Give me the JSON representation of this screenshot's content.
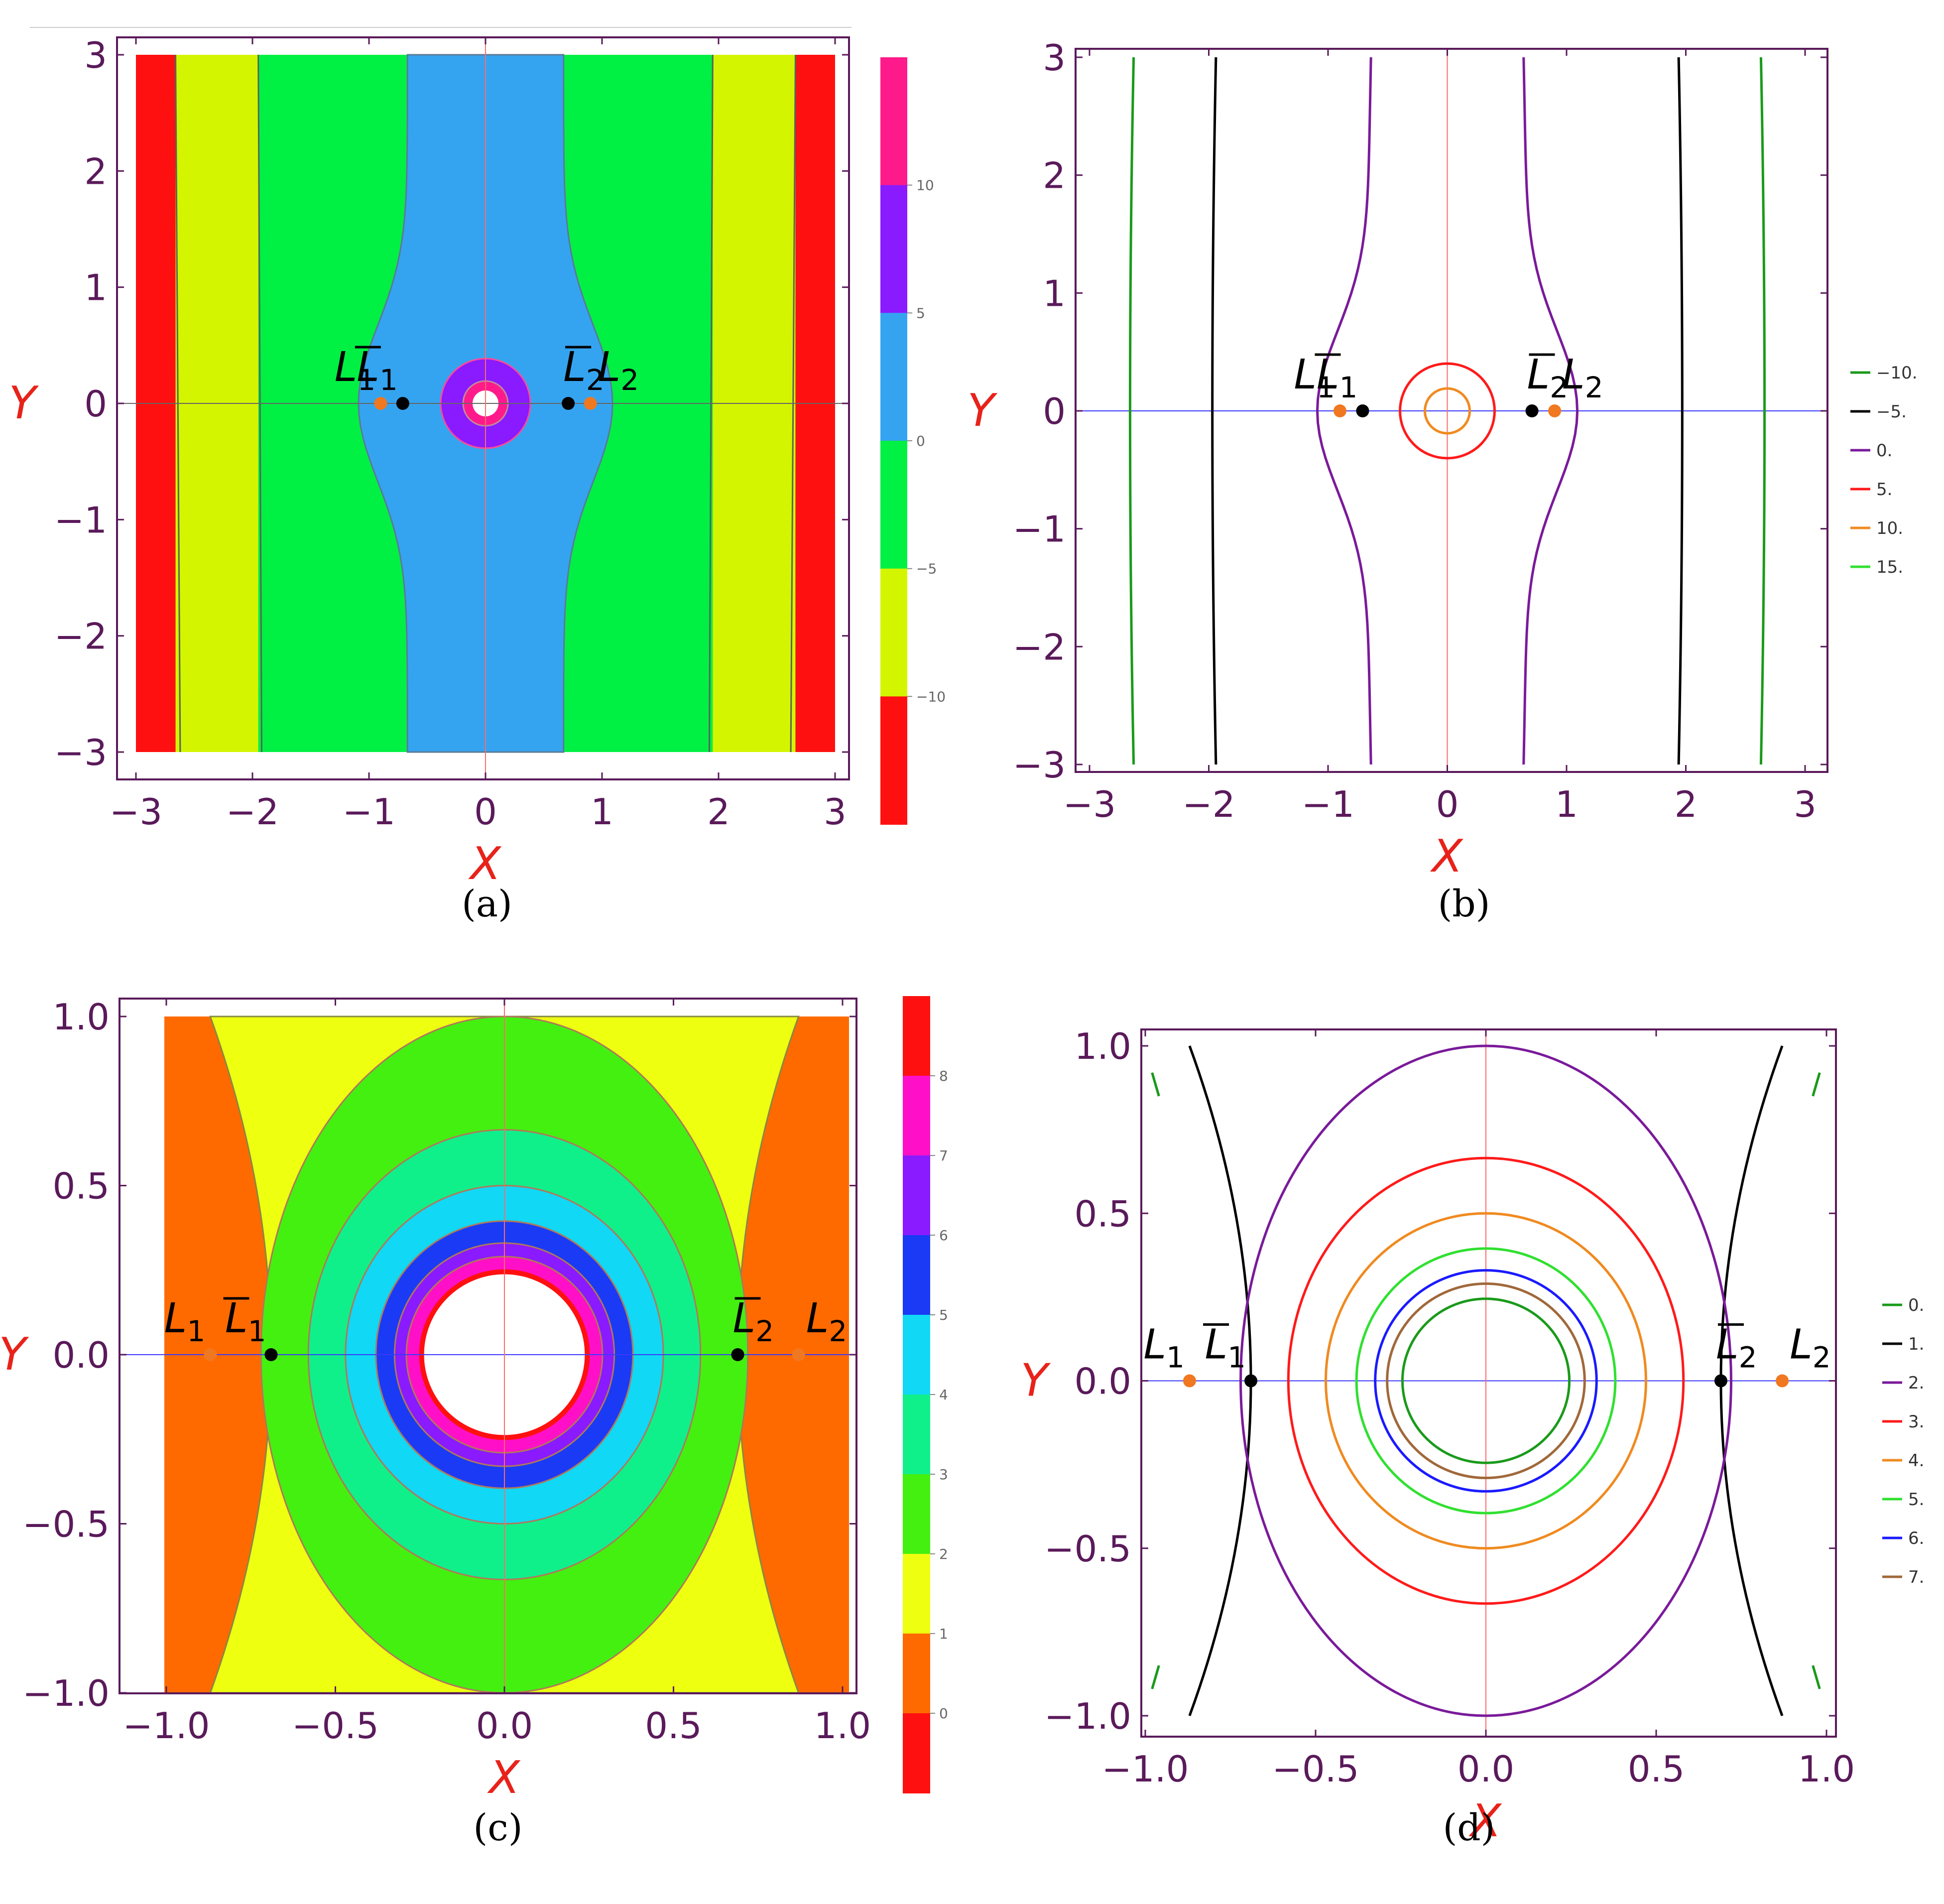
{
  "chart_data": [
    {
      "id": "a",
      "type": "heatmap",
      "caption": "(a)",
      "xlabel": "X",
      "ylabel": "Y",
      "xlim": [
        -3.2,
        3.2
      ],
      "ylim": [
        -3.2,
        3.2
      ],
      "xticks": [
        "−3",
        "−2",
        "−1",
        "0",
        "1",
        "2",
        "3"
      ],
      "yticks": [
        "3",
        "2",
        "1",
        "0",
        "−1",
        "−2",
        "−3"
      ],
      "grid": false,
      "regions": [
        {
          "level": "< −10",
          "color": "#ff1010"
        },
        {
          "level": "−10 to −5",
          "color": "#d4f500"
        },
        {
          "level": "−5 to 0",
          "color": "#00f044"
        },
        {
          "level": "0 to 5",
          "color": "#35a4f0"
        },
        {
          "level": "5 to 10",
          "color": "#8a1aff"
        },
        {
          "level": "> 10",
          "color": "#ff1a8c"
        }
      ],
      "colorbar_ticks": [
        "10",
        "5",
        "0",
        "−5",
        "−10"
      ],
      "points": [
        {
          "label": "L",
          "sub": "1",
          "bar": false,
          "x": -0.9,
          "y": 0,
          "color": "#f07820"
        },
        {
          "label": "L",
          "sub": "1",
          "bar": true,
          "x": -0.71,
          "y": 0,
          "color": "#000000"
        },
        {
          "label": "L",
          "sub": "2",
          "bar": true,
          "x": 0.71,
          "y": 0,
          "color": "#000000"
        },
        {
          "label": "L",
          "sub": "2",
          "bar": false,
          "x": 0.9,
          "y": 0,
          "color": "#f07820"
        }
      ]
    },
    {
      "id": "b",
      "type": "line",
      "caption": "(b)",
      "xlabel": "X",
      "ylabel": "Y",
      "xlim": [
        -3.2,
        3.2
      ],
      "ylim": [
        -3.2,
        3.2
      ],
      "xticks": [
        "−3",
        "−2",
        "−1",
        "0",
        "1",
        "2",
        "3"
      ],
      "yticks": [
        "3",
        "2",
        "1",
        "0",
        "−1",
        "−2",
        "−3"
      ],
      "grid": false,
      "legend_position": "right",
      "series": [
        {
          "name": "−10.",
          "color": "#1a9a1a"
        },
        {
          "name": "−5.",
          "color": "#000000"
        },
        {
          "name": "0.",
          "color": "#7a1a9a"
        },
        {
          "name": "5.",
          "color": "#ff1a1a"
        },
        {
          "name": "10.",
          "color": "#f08a20"
        },
        {
          "name": "15.",
          "color": "#30e030"
        }
      ],
      "points": [
        {
          "label": "L",
          "sub": "1",
          "bar": false,
          "x": -0.9,
          "y": 0,
          "color": "#f07820"
        },
        {
          "label": "L",
          "sub": "1",
          "bar": true,
          "x": -0.71,
          "y": 0,
          "color": "#000000"
        },
        {
          "label": "L",
          "sub": "2",
          "bar": true,
          "x": 0.71,
          "y": 0,
          "color": "#000000"
        },
        {
          "label": "L",
          "sub": "2",
          "bar": false,
          "x": 0.9,
          "y": 0,
          "color": "#f07820"
        }
      ]
    },
    {
      "id": "c",
      "type": "heatmap",
      "caption": "(c)",
      "xlabel": "X",
      "ylabel": "Y",
      "xlim": [
        -1.05,
        1.05
      ],
      "ylim": [
        -1.05,
        1.05
      ],
      "xticks": [
        "−1.0",
        "−0.5",
        "0.0",
        "0.5",
        "1.0"
      ],
      "yticks": [
        "1.0",
        "0.5",
        "0.0",
        "−0.5",
        "−1.0"
      ],
      "grid": false,
      "regions": [
        {
          "level": "< 0",
          "color": "#ff1010"
        },
        {
          "level": "0 to 1",
          "color": "#ff6a00"
        },
        {
          "level": "1 to 2",
          "color": "#eeff10"
        },
        {
          "level": "2 to 3",
          "color": "#44f010"
        },
        {
          "level": "3 to 4",
          "color": "#10f08a"
        },
        {
          "level": "4 to 5",
          "color": "#10d8f5"
        },
        {
          "level": "5 to 6",
          "color": "#1a3af5"
        },
        {
          "level": "6 to 7",
          "color": "#8a1aff"
        },
        {
          "level": "7 to 8",
          "color": "#ff10c8"
        },
        {
          "level": "> 8",
          "color": "#ff1010"
        }
      ],
      "colorbar_ticks": [
        "8",
        "7",
        "6",
        "5",
        "4",
        "3",
        "2",
        "1",
        "0"
      ],
      "points": [
        {
          "label": "L",
          "sub": "1",
          "bar": false,
          "x": -0.87,
          "y": 0,
          "color": "#f07820"
        },
        {
          "label": "L",
          "sub": "1",
          "bar": true,
          "x": -0.69,
          "y": 0,
          "color": "#000000"
        },
        {
          "label": "L",
          "sub": "2",
          "bar": true,
          "x": 0.69,
          "y": 0,
          "color": "#000000"
        },
        {
          "label": "L",
          "sub": "2",
          "bar": false,
          "x": 0.87,
          "y": 0,
          "color": "#f07820"
        }
      ]
    },
    {
      "id": "d",
      "type": "line",
      "caption": "(d)",
      "xlabel": "X",
      "ylabel": "Y",
      "xlim": [
        -1.05,
        1.05
      ],
      "ylim": [
        -1.05,
        1.05
      ],
      "xticks": [
        "−1.0",
        "−0.5",
        "0.0",
        "0.5",
        "1.0"
      ],
      "yticks": [
        "1.0",
        "0.5",
        "0.0",
        "−0.5",
        "−1.0"
      ],
      "grid": false,
      "legend_position": "right",
      "series": [
        {
          "name": "0.",
          "color": "#1a9a1a"
        },
        {
          "name": "1.",
          "color": "#000000"
        },
        {
          "name": "2.",
          "color": "#7a1a9a"
        },
        {
          "name": "3.",
          "color": "#ff1a1a"
        },
        {
          "name": "4.",
          "color": "#f08a20"
        },
        {
          "name": "5.",
          "color": "#30e030"
        },
        {
          "name": "6.",
          "color": "#1a1aff"
        },
        {
          "name": "7.",
          "color": "#a0683a"
        }
      ],
      "points": [
        {
          "label": "L",
          "sub": "1",
          "bar": false,
          "x": -0.87,
          "y": 0,
          "color": "#f07820"
        },
        {
          "label": "L",
          "sub": "1",
          "bar": true,
          "x": -0.69,
          "y": 0,
          "color": "#000000"
        },
        {
          "label": "L",
          "sub": "2",
          "bar": true,
          "x": 0.69,
          "y": 0,
          "color": "#000000"
        },
        {
          "label": "L",
          "sub": "2",
          "bar": false,
          "x": 0.87,
          "y": 0,
          "color": "#f07820"
        }
      ]
    }
  ]
}
